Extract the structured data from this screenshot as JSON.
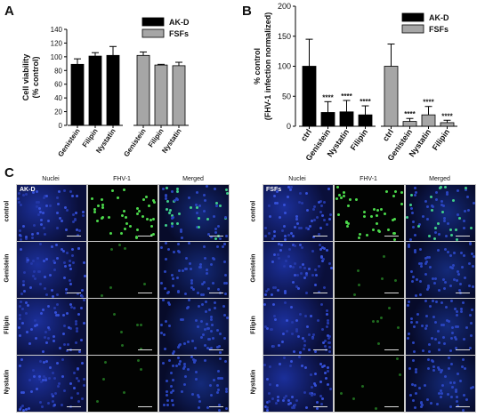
{
  "panels": {
    "a": "A",
    "b": "B",
    "c": "C"
  },
  "chart_data": [
    {
      "type": "bar",
      "panel": "A",
      "ylabel": "Cell viability\n(% control)",
      "ylim": [
        0,
        140
      ],
      "yticks": [
        0,
        20,
        40,
        60,
        80,
        100,
        120,
        140
      ],
      "grid": false,
      "legend": "top-right",
      "series": [
        {
          "name": "AK-D",
          "color": "#000000",
          "categories": [
            "Genistein",
            "Filipin",
            "Nystatin"
          ],
          "values": [
            89,
            101,
            102
          ],
          "errors": [
            8,
            5,
            13
          ]
        },
        {
          "name": "FSFs",
          "color": "#a6a6a6",
          "categories": [
            "Genistein",
            "Filipin",
            "Nystatin"
          ],
          "values": [
            102,
            88,
            87
          ],
          "errors": [
            5,
            1,
            5
          ]
        }
      ]
    },
    {
      "type": "bar",
      "panel": "B",
      "ylabel": "% control\n(FHV-1 infection normalized)",
      "ylim": [
        0,
        200
      ],
      "yticks": [
        0,
        50,
        100,
        150,
        200
      ],
      "grid": false,
      "legend": "top-right",
      "series": [
        {
          "name": "AK-D",
          "color": "#000000",
          "categories": [
            "ctrl",
            "Genistein",
            "Nystatin",
            "Filipin"
          ],
          "values": [
            100,
            23,
            24,
            19
          ],
          "errors": [
            45,
            18,
            19,
            15
          ],
          "sig": [
            "",
            "****",
            "****",
            "****"
          ]
        },
        {
          "name": "FSFs",
          "color": "#a6a6a6",
          "categories": [
            "ctrl",
            "Genistein",
            "Nystatin",
            "Filipin"
          ],
          "values": [
            100,
            8,
            19,
            6
          ],
          "errors": [
            37,
            5,
            14,
            4
          ],
          "sig": [
            "",
            "****",
            "****",
            "****"
          ]
        }
      ]
    }
  ],
  "micrographs": {
    "columns": [
      "Nuclei",
      "FHV-1",
      "Merged"
    ],
    "rows": [
      "control",
      "Genistein",
      "Filipin",
      "Nystatin"
    ],
    "left_tag": "AK-D",
    "right_tag": "FSFs"
  }
}
